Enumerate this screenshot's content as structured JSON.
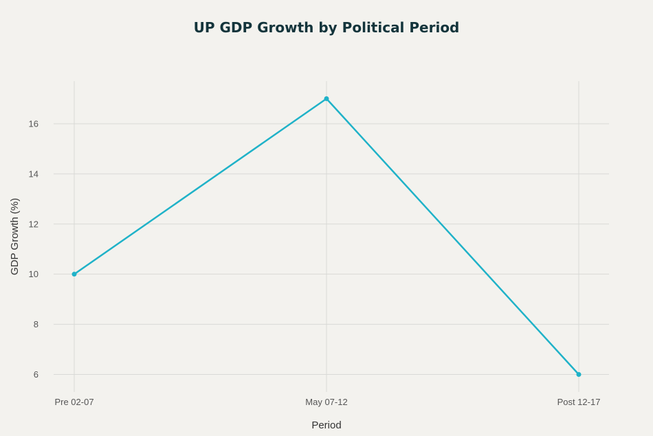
{
  "chart_data": {
    "type": "line",
    "title": "UP GDP Growth by Political Period",
    "xlabel": "Period",
    "ylabel": "GDP Growth (%)",
    "categories": [
      "Pre 02-07",
      "May 07-12",
      "Post 12-17"
    ],
    "series": [
      {
        "values": [
          10,
          17,
          6
        ],
        "color": "#1fb2c8"
      }
    ],
    "ylim": [
      5.3,
      17.7
    ],
    "yticks": [
      6,
      8,
      10,
      12,
      14,
      16
    ],
    "grid": true,
    "legend": "none"
  },
  "colors": {
    "background": "#f3f2ee",
    "grid": "#d9d9d6",
    "title": "#13343b"
  }
}
